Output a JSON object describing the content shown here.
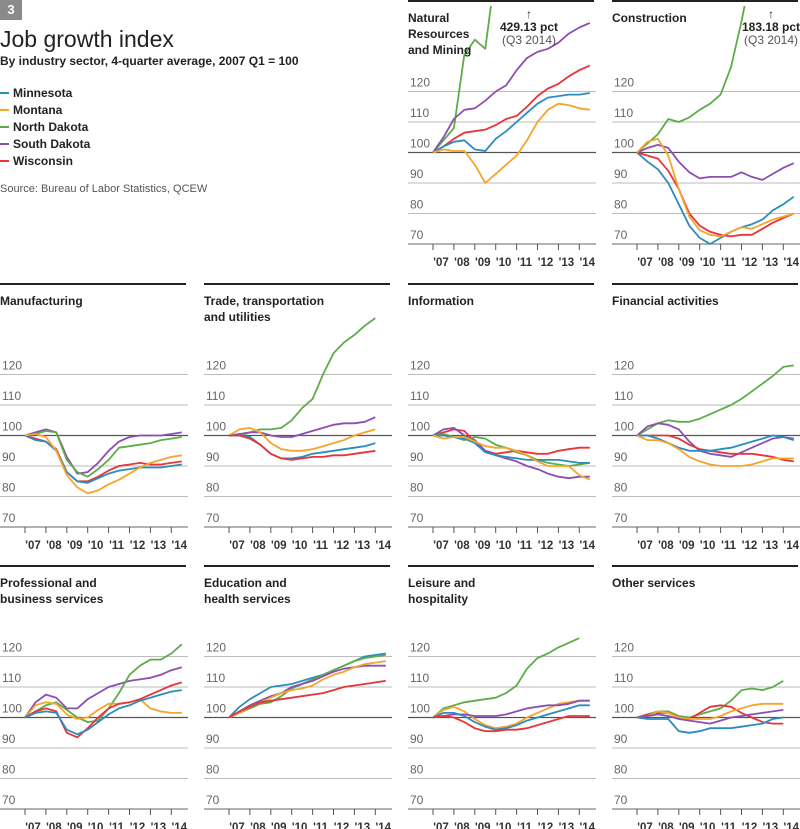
{
  "badge": "3",
  "title": "Job growth index",
  "subtitle": "By industry sector, 4-quarter average, 2007 Q1 = 100",
  "source": "Source: Bureau of Labor Statistics, QCEW",
  "chart_data": {
    "type": "line",
    "x_start": 2007,
    "x_step": 0.5,
    "ylim": [
      70,
      146
    ],
    "yticks": [
      70,
      80,
      90,
      100,
      110,
      120
    ],
    "xtick_labels": [
      "'07",
      "'08",
      "'09",
      "'10",
      "'11",
      "'12",
      "'13",
      "'14"
    ],
    "series_names": [
      "Minnesota",
      "Montana",
      "North Dakota",
      "South Dakota",
      "Wisconsin"
    ],
    "colors": {
      "Minnesota": "#2b8cbe",
      "Montana": "#f7a42c",
      "North Dakota": "#5cad4a",
      "South Dakota": "#8b4fb3",
      "Wisconsin": "#e8343b"
    },
    "panels": [
      {
        "title": "Natural\nResources\nand Mining",
        "annotation": {
          "value": "429.13 pct",
          "note": "(Q3 2014)"
        },
        "series": {
          "North Dakota": [
            100,
            104,
            108,
            132,
            137,
            134,
            160,
            190,
            220,
            255,
            290,
            325,
            360,
            390,
            415,
            429.13
          ],
          "South Dakota": [
            100,
            105,
            111,
            114,
            114.5,
            117,
            120,
            122,
            127,
            131,
            133,
            134,
            136,
            139,
            141,
            142.5
          ],
          "Wisconsin": [
            100,
            102,
            104.5,
            106.5,
            107,
            107.5,
            109,
            111,
            112,
            115,
            118.5,
            121,
            122.5,
            125,
            127,
            128.5
          ],
          "Minnesota": [
            100,
            102,
            103.5,
            104,
            101,
            100.5,
            104.5,
            107,
            110,
            113,
            116,
            118,
            118.5,
            119,
            119,
            119.5
          ],
          "Montana": [
            100,
            101,
            100.5,
            100.5,
            96,
            90,
            93,
            96,
            99,
            104,
            110,
            114,
            116,
            115.5,
            114.5,
            114
          ]
        }
      },
      {
        "title": "Construction",
        "annotation": {
          "value": "183.18 pct",
          "note": "(Q3 2014)"
        },
        "series": {
          "North Dakota": [
            100,
            103,
            106,
            111,
            110,
            111.5,
            114,
            116,
            119,
            128,
            143,
            160,
            170,
            177,
            181,
            183.18
          ],
          "South Dakota": [
            100,
            101.5,
            102.5,
            101.5,
            97,
            93.5,
            91.5,
            92,
            92,
            92,
            93.5,
            92,
            91,
            93,
            95,
            96.5
          ],
          "Minnesota": [
            100,
            97,
            94.5,
            90,
            83,
            76,
            72,
            70,
            72,
            74,
            75.5,
            76.5,
            78,
            81,
            83,
            85.5
          ],
          "Wisconsin": [
            100,
            99,
            98,
            94,
            88,
            80,
            76,
            74,
            73,
            72.5,
            73,
            73,
            75,
            77,
            78.5,
            80
          ],
          "Montana": [
            100,
            103.5,
            104.5,
            99,
            88,
            79,
            74.5,
            73,
            72.5,
            74,
            75.5,
            75,
            76.5,
            78,
            79,
            80
          ]
        }
      },
      {
        "title": "Manufacturing",
        "series": {
          "South Dakota": [
            100,
            101,
            102,
            101,
            93,
            87.5,
            88,
            91,
            95,
            98,
            99.5,
            100,
            100,
            100,
            100.5,
            101
          ],
          "North Dakota": [
            100,
            100.5,
            101.5,
            101,
            92,
            88,
            86.5,
            89,
            92,
            96,
            96.5,
            97,
            97.5,
            98.5,
            99,
            99.5
          ],
          "Wisconsin": [
            100,
            99,
            98,
            95.5,
            88,
            85,
            85,
            86.5,
            88.5,
            90,
            90.5,
            91,
            90.5,
            90.5,
            91,
            91.5
          ],
          "Minnesota": [
            100,
            98.5,
            98,
            95,
            88,
            85,
            84.5,
            86,
            87.5,
            88.5,
            89,
            89.5,
            89.5,
            89.5,
            90,
            90.5
          ],
          "Montana": [
            100,
            100.5,
            99.5,
            95,
            87,
            83,
            81,
            82,
            84,
            85.5,
            87.5,
            89.5,
            91,
            92,
            93,
            93.5
          ]
        }
      },
      {
        "title": "Trade, transportation\nand utilities",
        "series": {
          "North Dakota": [
            100,
            100,
            101,
            102,
            102,
            102.5,
            105,
            109,
            112,
            120,
            127,
            130.5,
            133,
            136,
            138.5
          ],
          "South Dakota": [
            100,
            100.5,
            101,
            101,
            100,
            99.5,
            99.5,
            100.5,
            101.5,
            102.5,
            103.5,
            104,
            104,
            104.5,
            106
          ],
          "Montana": [
            100,
            102,
            102.5,
            101,
            97.5,
            95.5,
            95,
            95,
            95.5,
            96.5,
            97.5,
            98.5,
            100,
            101,
            102
          ],
          "Minnesota": [
            100,
            100,
            99.5,
            97,
            94,
            92.5,
            92.5,
            93,
            94,
            94.5,
            95,
            95.5,
            96,
            96.5,
            97.5
          ],
          "Wisconsin": [
            100,
            100,
            99,
            97,
            94,
            92.5,
            92,
            92.5,
            93,
            93,
            93.5,
            93.5,
            94,
            94.5,
            95
          ]
        }
      },
      {
        "title": "Information",
        "series": {
          "Wisconsin": [
            100,
            101,
            102,
            101.5,
            98,
            95,
            94,
            94.5,
            95,
            94.5,
            94,
            94,
            95,
            95.5,
            96,
            96
          ],
          "South Dakota": [
            100,
            102,
            102.5,
            100,
            98.5,
            95,
            93.5,
            92.5,
            91.5,
            90,
            89,
            87.5,
            86.5,
            86,
            86.5,
            86.5
          ],
          "North Dakota": [
            100,
            100.5,
            99.5,
            98.5,
            99.5,
            99,
            97,
            96,
            94.5,
            93.5,
            92,
            91,
            90.5,
            90,
            90.5,
            91
          ],
          "Minnesota": [
            100,
            100,
            99.5,
            99,
            97.5,
            94.5,
            93.5,
            93,
            92.5,
            92,
            92,
            92,
            92,
            91.5,
            91,
            91
          ],
          "Montana": [
            100,
            99,
            99.5,
            99.5,
            98,
            96.5,
            96,
            96,
            95,
            93.5,
            91.5,
            90,
            90,
            90,
            87,
            85.5
          ]
        }
      },
      {
        "title": "Financial activities",
        "series": {
          "North Dakota": [
            100,
            102,
            104,
            105,
            104.5,
            104.5,
            105.5,
            107,
            108.5,
            110,
            112,
            114.5,
            117,
            119.5,
            122.5,
            123
          ],
          "South Dakota": [
            100,
            103,
            104,
            103.5,
            102,
            98,
            95,
            94,
            93.5,
            93,
            94.5,
            96,
            97.5,
            99,
            99.5,
            99
          ],
          "Wisconsin": [
            100,
            100,
            100,
            100,
            99,
            97,
            95.5,
            95,
            94.5,
            94,
            94,
            94,
            93.5,
            93,
            92,
            91.5
          ],
          "Minnesota": [
            100,
            100,
            99,
            97.5,
            96,
            95,
            95,
            95,
            95.5,
            96,
            97,
            98,
            99,
            100,
            99.5,
            98.5
          ],
          "Montana": [
            100,
            98.5,
            98.5,
            97.5,
            95.5,
            93,
            91.5,
            90.5,
            90,
            90,
            90,
            90.5,
            91.5,
            92.5,
            92.5,
            92.5
          ]
        }
      },
      {
        "title": "Professional and\nbusiness services",
        "series": {
          "South Dakota": [
            100,
            105,
            107.5,
            106.5,
            103,
            103,
            106,
            108,
            110,
            111,
            112,
            112.5,
            113,
            114,
            115.5,
            116.5
          ],
          "North Dakota": [
            100,
            102,
            104,
            105,
            102.5,
            100,
            98.5,
            99,
            103,
            108,
            114,
            117,
            119,
            119,
            121,
            124
          ],
          "Montana": [
            100,
            104,
            105,
            104.5,
            101,
            99.5,
            100,
            102.5,
            104.5,
            104.5,
            105,
            106,
            103,
            102,
            101.5,
            101.5
          ],
          "Wisconsin": [
            100,
            102,
            103,
            102,
            95,
            93.5,
            96.5,
            100,
            103,
            104.5,
            105,
            106,
            107.5,
            109,
            110.5,
            111.5
          ],
          "Minnesota": [
            100,
            101.5,
            102,
            101.5,
            96,
            94.5,
            96,
            98.5,
            101,
            103,
            104,
            105.5,
            106.5,
            107.5,
            108.5,
            109
          ]
        }
      },
      {
        "title": "Education and\nhealth services",
        "series": {
          "Minnesota": [
            100,
            103.5,
            106,
            108,
            110,
            110.5,
            111,
            112,
            113,
            114,
            115.5,
            117,
            118.5,
            120,
            120.5,
            121
          ],
          "North Dakota": [
            100,
            101.5,
            103,
            104.5,
            105,
            107,
            109.5,
            111,
            112.5,
            114,
            115.5,
            117,
            118.5,
            119.5,
            120,
            120.5
          ],
          "South Dakota": [
            100,
            102,
            104,
            105.5,
            107,
            108,
            110,
            111,
            112,
            113.5,
            115,
            116,
            116.5,
            117,
            117,
            117
          ],
          "Montana": [
            100,
            101.5,
            103.5,
            105,
            106.5,
            108,
            109,
            109.5,
            110.5,
            112.5,
            114,
            115,
            116.5,
            117.5,
            118,
            118.5
          ],
          "Wisconsin": [
            100,
            102,
            103.5,
            105,
            105.5,
            106,
            106.5,
            107,
            107.5,
            108,
            109,
            110,
            110.5,
            111,
            111.5,
            112
          ]
        }
      },
      {
        "title": "Leisure and\nhospitality",
        "series": {
          "North Dakota": [
            100,
            103,
            104,
            105,
            105.5,
            106,
            106.5,
            108,
            110.5,
            116,
            119.5,
            121,
            123,
            124.5,
            126
          ],
          "Montana": [
            100,
            102.5,
            103.5,
            102,
            99.5,
            97.5,
            96.5,
            97,
            98,
            100,
            101.5,
            103,
            104.5,
            105,
            105.5,
            105.5
          ],
          "South Dakota": [
            100,
            100.5,
            101,
            101,
            100.5,
            100.5,
            100.5,
            101,
            102,
            103,
            103.5,
            104,
            104,
            104.5,
            105.5,
            105.5
          ],
          "Minnesota": [
            100,
            101.5,
            101.5,
            100.5,
            98.5,
            97,
            96,
            96.5,
            97.5,
            99,
            100,
            101,
            102,
            103,
            104,
            104
          ],
          "Wisconsin": [
            100,
            100.5,
            100,
            98.5,
            96.5,
            95.5,
            95.5,
            96,
            96,
            96.5,
            97.5,
            98.5,
            99.5,
            100.5,
            100.5,
            100.5
          ]
        }
      },
      {
        "title": "Other services",
        "series": {
          "North Dakota": [
            100,
            101,
            102,
            102,
            100.5,
            100,
            101,
            102,
            103,
            105.5,
            109,
            109.5,
            109,
            110,
            112
          ],
          "Wisconsin": [
            100,
            101,
            101.5,
            101.5,
            100,
            99.5,
            101.5,
            103.5,
            104,
            103.5,
            101.5,
            100,
            98.5,
            98,
            98
          ],
          "Montana": [
            100,
            100.5,
            102,
            101.5,
            100,
            99.5,
            99.5,
            99.5,
            100.5,
            102,
            103,
            104,
            104.5,
            104.5,
            104.5
          ],
          "South Dakota": [
            100,
            100.5,
            101,
            100.5,
            99.5,
            99,
            98.5,
            98,
            99,
            100,
            100.5,
            101,
            101.5,
            102,
            102.5
          ],
          "Minnesota": [
            100,
            99.5,
            99.5,
            99.5,
            95.5,
            95,
            95.5,
            96.5,
            96.5,
            96.5,
            97,
            97.5,
            98,
            99.5,
            100
          ]
        }
      }
    ]
  }
}
